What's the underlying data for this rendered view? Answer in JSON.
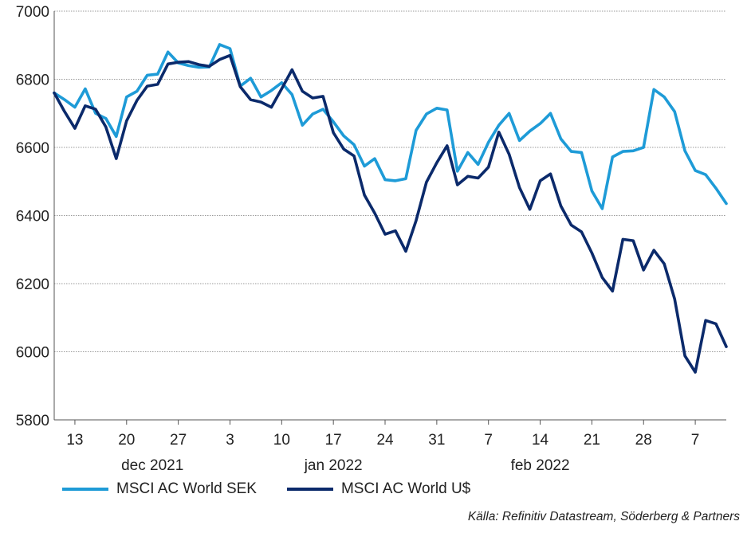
{
  "chart_data": {
    "type": "line",
    "ylim": [
      5800,
      7000
    ],
    "yticks": [
      5800,
      6000,
      6200,
      6400,
      6600,
      6800,
      7000
    ],
    "xtick_labels": [
      "13",
      "20",
      "27",
      "3",
      "10",
      "17",
      "24",
      "31",
      "7",
      "14",
      "21",
      "28",
      "7"
    ],
    "month_labels": [
      "dec 2021",
      "jan 2022",
      "feb 2022"
    ],
    "grid": "horizontal",
    "legend_position": "bottom",
    "series": [
      {
        "name": "MSCI AC World SEK",
        "color": "#1E9BD7",
        "values": [
          6760,
          6740,
          6718,
          6772,
          6700,
          6685,
          6632,
          6748,
          6765,
          6812,
          6815,
          6880,
          6848,
          6840,
          6835,
          6836,
          6902,
          6890,
          6780,
          6803,
          6748,
          6767,
          6790,
          6755,
          6665,
          6698,
          6712,
          6675,
          6634,
          6608,
          6545,
          6567,
          6505,
          6502,
          6508,
          6650,
          6698,
          6715,
          6710,
          6530,
          6585,
          6550,
          6615,
          6665,
          6700,
          6620,
          6648,
          6670,
          6700,
          6625,
          6588,
          6585,
          6472,
          6420,
          6572,
          6588,
          6590,
          6600,
          6770,
          6748,
          6705,
          6590,
          6532,
          6520,
          6480,
          6435
        ]
      },
      {
        "name": "MSCI AC World U$",
        "color": "#0B2A6B",
        "values": [
          6760,
          6705,
          6656,
          6722,
          6712,
          6660,
          6567,
          6678,
          6738,
          6780,
          6785,
          6845,
          6850,
          6852,
          6843,
          6838,
          6858,
          6870,
          6778,
          6740,
          6733,
          6718,
          6772,
          6828,
          6765,
          6745,
          6750,
          6643,
          6595,
          6575,
          6460,
          6407,
          6345,
          6355,
          6295,
          6385,
          6498,
          6555,
          6605,
          6490,
          6515,
          6510,
          6542,
          6645,
          6580,
          6482,
          6418,
          6502,
          6522,
          6428,
          6372,
          6352,
          6290,
          6218,
          6178,
          6330,
          6326,
          6240,
          6298,
          6258,
          6155,
          5988,
          5940,
          6092,
          6082,
          6015
        ]
      }
    ],
    "source": "Källa: Refinitiv Datastream, Söderberg & Partners"
  }
}
